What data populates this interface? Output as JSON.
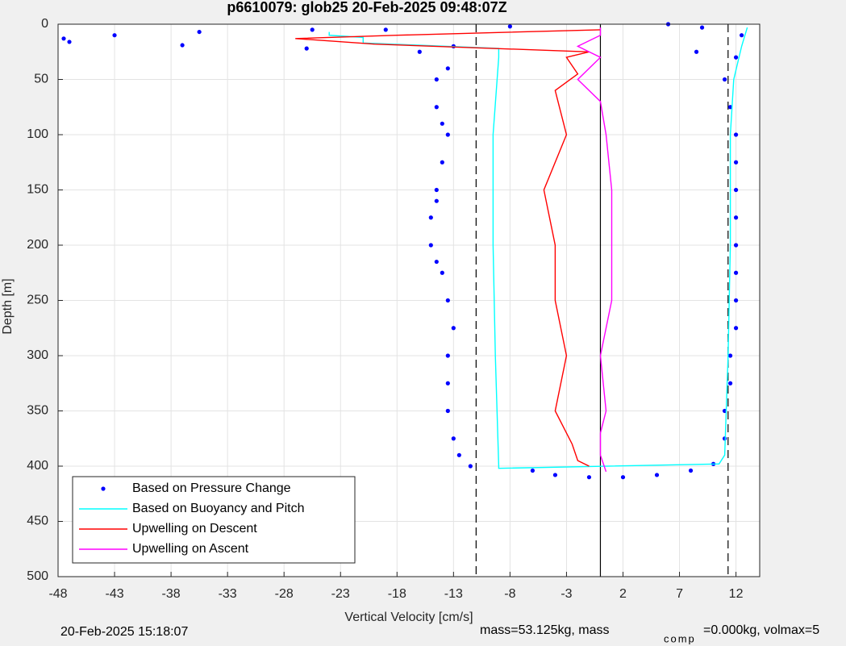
{
  "chart_data": {
    "type": "scatter",
    "title": "p6610079: glob25 20-Feb-2025 09:48:07Z",
    "x_label": "Vertical Velocity [cm/s]",
    "y_label": "Depth [m]",
    "xlim": [
      -48,
      14.1
    ],
    "ylim": [
      0,
      500
    ],
    "y_reversed": true,
    "xticks": [
      -48,
      -43,
      -38,
      -33,
      -28,
      -23,
      -18,
      -13,
      -8,
      -3,
      2,
      7,
      12
    ],
    "yticks": [
      0,
      50,
      100,
      150,
      200,
      250,
      300,
      350,
      400,
      450,
      500
    ],
    "grid": true,
    "legend_position": "lower left",
    "vlines": [
      {
        "value": -11,
        "color": "#000000",
        "style": "dashed"
      },
      {
        "value": 0,
        "color": "#000000",
        "style": "solid"
      },
      {
        "value": 11.3,
        "color": "#000000",
        "style": "dashed"
      }
    ],
    "series": [
      {
        "name": "Based on Pressure Change",
        "kind": "points",
        "color": "#0000ff",
        "x": [
          -47.5,
          -47,
          -43,
          -37,
          -35.5,
          -26,
          -25.5,
          -19,
          -13,
          -8,
          6,
          9,
          8.5,
          -16,
          -13.5,
          -14.5,
          -14.5,
          -14,
          -13.5,
          -14,
          -14.5,
          -14.5,
          -15,
          -15,
          -14.5,
          -14,
          -13.5,
          -13,
          -13.5,
          -13.5,
          -13.5,
          -13,
          -12.5,
          -11.5,
          -6,
          -4,
          -1,
          2,
          5,
          8,
          10,
          11,
          11,
          11.5,
          11.5,
          12,
          12,
          12,
          12,
          12,
          12,
          12,
          12,
          11.5,
          11,
          12,
          12.5
        ],
        "y": [
          13,
          16,
          10,
          19,
          7,
          22,
          5,
          5,
          20,
          2,
          0,
          3,
          25,
          25,
          40,
          50,
          75,
          90,
          100,
          125,
          150,
          160,
          175,
          200,
          215,
          225,
          250,
          275,
          300,
          325,
          350,
          375,
          390,
          400,
          404,
          408,
          410,
          410,
          408,
          404,
          398,
          375,
          350,
          325,
          300,
          275,
          250,
          225,
          200,
          175,
          150,
          125,
          100,
          75,
          50,
          30,
          10
        ]
      },
      {
        "name": "Based on Buoyancy and Pitch",
        "kind": "line",
        "color": "#00ffff",
        "x": [
          -24,
          -24,
          -21,
          -21,
          -9,
          -9,
          -9.5,
          -9.5,
          -9.3,
          -9,
          -9,
          10.5,
          11,
          11.3,
          11.5,
          11.5,
          11.8,
          12.5,
          13
        ],
        "y": [
          7,
          10,
          12,
          17,
          22,
          30,
          100,
          200,
          300,
          400,
          402,
          398,
          390,
          300,
          200,
          100,
          50,
          20,
          3
        ]
      },
      {
        "name": "Upwelling on Descent",
        "kind": "line",
        "color": "#ff0000",
        "x": [
          0,
          -18,
          -27,
          -20,
          -1,
          -3,
          -2,
          -4,
          -3,
          -5,
          -4,
          -4,
          -3,
          -4,
          -2.5,
          -2,
          -1
        ],
        "y": [
          5,
          10,
          13,
          18,
          25,
          30,
          45,
          60,
          100,
          150,
          200,
          250,
          300,
          350,
          380,
          395,
          400
        ]
      },
      {
        "name": "Upwelling on Ascent",
        "kind": "line",
        "color": "#ff00ff",
        "x": [
          0.5,
          0,
          0,
          0.5,
          0,
          1,
          1,
          1,
          0.5,
          0,
          -2,
          -1,
          0,
          -2,
          0,
          0
        ],
        "y": [
          405,
          390,
          370,
          350,
          300,
          250,
          200,
          150,
          100,
          70,
          50,
          40,
          30,
          20,
          10,
          3
        ]
      }
    ],
    "footer": {
      "timestamp": "20-Feb-2025 15:18:07",
      "mass_text": "mass=53.125kg, mass",
      "mass_subscript": "comp",
      "mass_rest": "=0.000kg, volmax=5"
    }
  }
}
